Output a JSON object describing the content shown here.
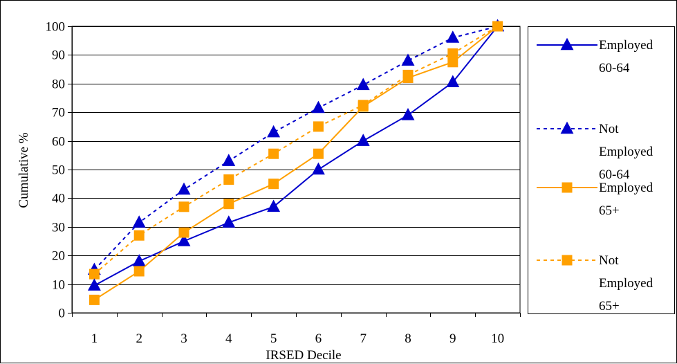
{
  "chart_data": {
    "type": "line",
    "xlabel": "IRSED Decile",
    "ylabel": "Cumulative %",
    "categories": [
      "1",
      "2",
      "3",
      "4",
      "5",
      "6",
      "7",
      "8",
      "9",
      "10"
    ],
    "ylim": [
      0,
      100
    ],
    "yticks": [
      0,
      10,
      20,
      30,
      40,
      50,
      60,
      70,
      80,
      90,
      100
    ],
    "grid": "horizontal",
    "legend_position": "right",
    "series": [
      {
        "name": "Employed 60-64",
        "legend_lines": [
          "Employed",
          "60-64"
        ],
        "color": "#0000CC",
        "marker": "triangle",
        "dash": "solid",
        "values": [
          9.5,
          18,
          25,
          31.5,
          37,
          50,
          60,
          69,
          80.5,
          100
        ]
      },
      {
        "name": "Not Employed 60-64",
        "legend_lines": [
          "Not",
          "Employed",
          "60-64"
        ],
        "color": "#0000CC",
        "marker": "triangle",
        "dash": "dashed",
        "values": [
          15,
          31.5,
          43,
          53,
          63,
          71.5,
          79.5,
          88,
          96,
          100
        ]
      },
      {
        "name": "Employed 65+",
        "legend_lines": [
          "Employed",
          "65+"
        ],
        "color": "#FFA000",
        "marker": "square",
        "dash": "solid",
        "values": [
          4.5,
          14.5,
          28,
          38,
          45,
          55.5,
          72,
          82,
          87.5,
          100
        ]
      },
      {
        "name": "Not Employed 65+",
        "legend_lines": [
          "Not",
          "Employed",
          "65+"
        ],
        "color": "#FFA000",
        "marker": "square",
        "dash": "dashed",
        "values": [
          13.5,
          27,
          37,
          46.5,
          55.5,
          65,
          72.5,
          83,
          90.5,
          100
        ]
      }
    ]
  }
}
